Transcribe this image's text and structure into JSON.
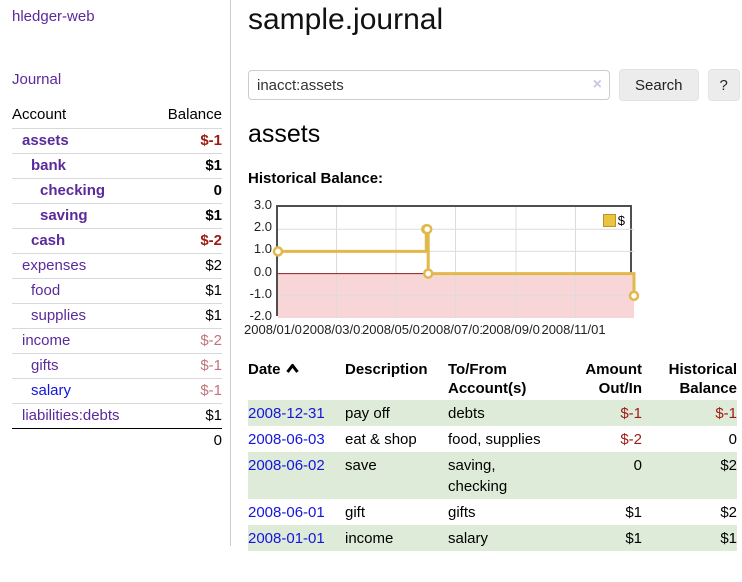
{
  "sidebar": {
    "brand": "hledger-web",
    "journal_link": "Journal",
    "accounts_table": {
      "headers": [
        "Account",
        "Balance"
      ],
      "rows": [
        {
          "name": "assets",
          "indent": 0,
          "bold": true,
          "balance": "$-1",
          "balance_style": "neg-strong",
          "link_color": "purple"
        },
        {
          "name": "bank",
          "indent": 1,
          "bold": true,
          "balance": "$1",
          "balance_style": "",
          "link_color": "purple"
        },
        {
          "name": "checking",
          "indent": 2,
          "bold": true,
          "balance": "0",
          "balance_style": "",
          "link_color": "purple"
        },
        {
          "name": "saving",
          "indent": 2,
          "bold": true,
          "balance": "$1",
          "balance_style": "",
          "link_color": "purple"
        },
        {
          "name": "cash",
          "indent": 1,
          "bold": true,
          "balance": "$-2",
          "balance_style": "neg-strong",
          "link_color": "purple"
        },
        {
          "name": "expenses",
          "indent": 0,
          "bold": false,
          "balance": "$2",
          "balance_style": "",
          "link_color": "purple"
        },
        {
          "name": "food",
          "indent": 1,
          "bold": false,
          "balance": "$1",
          "balance_style": "",
          "link_color": "purple"
        },
        {
          "name": "supplies",
          "indent": 1,
          "bold": false,
          "balance": "$1",
          "balance_style": "",
          "link_color": "purple"
        },
        {
          "name": "income",
          "indent": 0,
          "bold": false,
          "balance": "$-2",
          "balance_style": "neg-soft",
          "link_color": "purple"
        },
        {
          "name": "gifts",
          "indent": 1,
          "bold": false,
          "balance": "$-1",
          "balance_style": "neg-soft",
          "link_color": "purple"
        },
        {
          "name": "salary",
          "indent": 1,
          "bold": false,
          "balance": "$-1",
          "balance_style": "neg-soft",
          "link_color": "blue"
        },
        {
          "name": "liabilities:debts",
          "indent": 0,
          "bold": false,
          "balance": "$1",
          "balance_style": "",
          "link_color": "purple"
        }
      ],
      "total": "0"
    }
  },
  "main": {
    "title": "sample.journal",
    "search": {
      "value": "inacct:assets",
      "clear_icon": "×",
      "search_button": "Search",
      "help_button": "?"
    },
    "section_title": "assets",
    "chart_label": "Historical Balance:"
  },
  "chart_data": {
    "type": "line",
    "title": "Historical Balance",
    "step": true,
    "series": [
      {
        "name": "$",
        "points": [
          [
            "2008-01-01",
            1
          ],
          [
            "2008-06-01",
            2
          ],
          [
            "2008-06-02",
            2
          ],
          [
            "2008-06-03",
            0
          ],
          [
            "2008-12-31",
            -1
          ]
        ]
      }
    ],
    "x_ticks": [
      "2008/01/01",
      "2008/03/01",
      "2008/05/01",
      "2008/07/01",
      "2008/09/01",
      "2008/11/01"
    ],
    "y_ticks": [
      "3.0",
      "2.0",
      "1.0",
      "0.0",
      "-1.0",
      "-2.0"
    ],
    "ylim": [
      -2,
      3
    ],
    "xlim": [
      "2008-01-01",
      "2008-12-31"
    ],
    "legend_position": "top-right",
    "grid": true,
    "colors": {
      "line": "#e2b84b",
      "marker_fill": "#ffffff",
      "negative_region": "#f8d6d8",
      "zero_line": "#8a1f1f",
      "grid": "#dcdcdc",
      "border": "#4f4f4f",
      "legend_fill": "#eac340"
    }
  },
  "register": {
    "headers": [
      {
        "lines": [
          "Date"
        ],
        "sortable": true
      },
      {
        "lines": [
          "Description"
        ]
      },
      {
        "lines": [
          "To/From",
          "Account(s)"
        ]
      },
      {
        "lines": [
          "Amount",
          "Out/In"
        ],
        "align": "right"
      },
      {
        "lines": [
          "Historical",
          "Balance"
        ],
        "align": "right"
      }
    ],
    "rows": [
      {
        "date": "2008-12-31",
        "description": "pay off",
        "accounts": "debts",
        "amount": "$-1",
        "amount_neg": true,
        "balance": "$-1",
        "balance_neg": true
      },
      {
        "date": "2008-06-03",
        "description": "eat & shop",
        "accounts": "food, supplies",
        "amount": "$-2",
        "amount_neg": true,
        "balance": "0",
        "balance_neg": false
      },
      {
        "date": "2008-06-02",
        "description": "save",
        "accounts": "saving, checking",
        "amount": "0",
        "amount_neg": false,
        "balance": "$2",
        "balance_neg": false
      },
      {
        "date": "2008-06-01",
        "description": "gift",
        "accounts": "gifts",
        "amount": "$1",
        "amount_neg": false,
        "balance": "$2",
        "balance_neg": false
      },
      {
        "date": "2008-01-01",
        "description": "income",
        "accounts": "salary",
        "amount": "$1",
        "amount_neg": false,
        "balance": "$1",
        "balance_neg": false
      }
    ]
  }
}
